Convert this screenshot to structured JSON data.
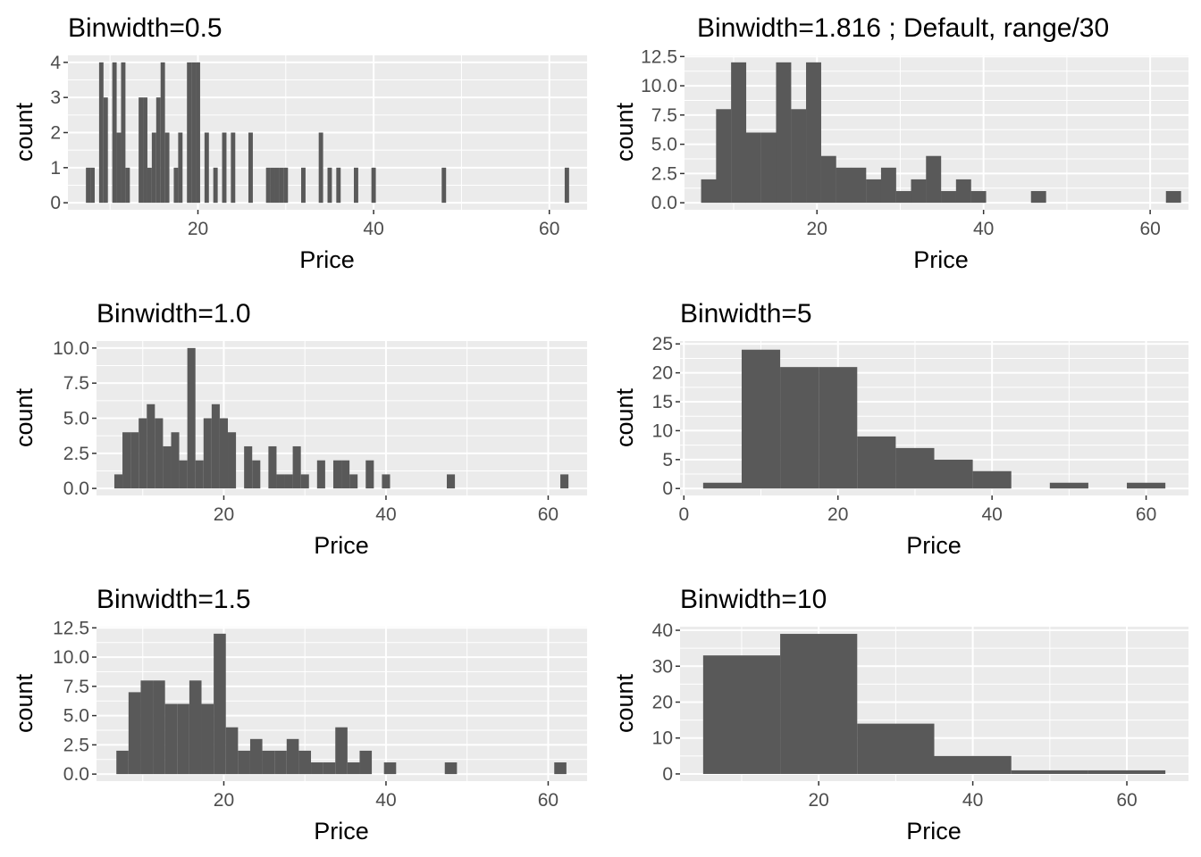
{
  "colors": {
    "panel_background": "#ebebeb",
    "grid": "#ffffff",
    "bar_fill": "#595959",
    "tick_text": "#4d4d4d",
    "tick_mark": "#333333"
  },
  "chart_data": [
    {
      "type": "bar",
      "title": "Binwidth=0.5",
      "xlabel": "Price",
      "ylabel": "count",
      "xlim": [
        5.2,
        64.3
      ],
      "ylim": [
        -0.2,
        4.2
      ],
      "xticks": [
        20,
        40,
        60
      ],
      "xtick_labels": [
        "20",
        "40",
        "60"
      ],
      "yticks": [
        0,
        1,
        2,
        3,
        4
      ],
      "ytick_labels": [
        "0",
        "1",
        "2",
        "3",
        "4"
      ],
      "grid": true,
      "binwidth": 0.5,
      "bins": [
        {
          "x": 7.5,
          "count": 1
        },
        {
          "x": 8.0,
          "count": 1
        },
        {
          "x": 9.0,
          "count": 4
        },
        {
          "x": 9.5,
          "count": 3
        },
        {
          "x": 10.5,
          "count": 4
        },
        {
          "x": 11.0,
          "count": 2
        },
        {
          "x": 11.5,
          "count": 4
        },
        {
          "x": 12.0,
          "count": 1
        },
        {
          "x": 13.5,
          "count": 3
        },
        {
          "x": 14.0,
          "count": 3
        },
        {
          "x": 14.5,
          "count": 1
        },
        {
          "x": 15.0,
          "count": 2
        },
        {
          "x": 15.5,
          "count": 3
        },
        {
          "x": 16.0,
          "count": 4
        },
        {
          "x": 16.5,
          "count": 2
        },
        {
          "x": 17.5,
          "count": 1
        },
        {
          "x": 18.0,
          "count": 2
        },
        {
          "x": 19.0,
          "count": 4
        },
        {
          "x": 19.5,
          "count": 4
        },
        {
          "x": 20.0,
          "count": 4
        },
        {
          "x": 21.0,
          "count": 2
        },
        {
          "x": 22.0,
          "count": 1
        },
        {
          "x": 23.0,
          "count": 2
        },
        {
          "x": 24.0,
          "count": 2
        },
        {
          "x": 26.0,
          "count": 2
        },
        {
          "x": 28.0,
          "count": 1
        },
        {
          "x": 28.5,
          "count": 1
        },
        {
          "x": 29.0,
          "count": 1
        },
        {
          "x": 29.5,
          "count": 1
        },
        {
          "x": 30.0,
          "count": 1
        },
        {
          "x": 32.0,
          "count": 1
        },
        {
          "x": 34.0,
          "count": 2
        },
        {
          "x": 35.0,
          "count": 1
        },
        {
          "x": 36.0,
          "count": 1
        },
        {
          "x": 38.0,
          "count": 1
        },
        {
          "x": 40.0,
          "count": 1
        },
        {
          "x": 48.0,
          "count": 1
        },
        {
          "x": 62.0,
          "count": 1
        }
      ]
    },
    {
      "type": "bar",
      "title": "Binwidth=1.816 ; Default, range/30",
      "xlabel": "Price",
      "ylabel": "count",
      "xlim": [
        4.1,
        64.6
      ],
      "ylim": [
        -0.6,
        12.6
      ],
      "xticks": [
        20,
        40,
        60
      ],
      "xtick_labels": [
        "20",
        "40",
        "60"
      ],
      "yticks": [
        0,
        2.5,
        5,
        7.5,
        10,
        12.5
      ],
      "ytick_labels": [
        "0.0",
        "2.5",
        "5.0",
        "7.5",
        "10.0",
        "12.5"
      ],
      "grid": true,
      "binwidth": 1.816,
      "bins": [
        {
          "x": 7.0,
          "count": 2
        },
        {
          "x": 8.8,
          "count": 8
        },
        {
          "x": 10.6,
          "count": 12
        },
        {
          "x": 12.4,
          "count": 6
        },
        {
          "x": 14.2,
          "count": 6
        },
        {
          "x": 16.0,
          "count": 12
        },
        {
          "x": 17.8,
          "count": 8
        },
        {
          "x": 19.6,
          "count": 12
        },
        {
          "x": 21.4,
          "count": 4
        },
        {
          "x": 23.2,
          "count": 3
        },
        {
          "x": 25.0,
          "count": 3
        },
        {
          "x": 26.8,
          "count": 2
        },
        {
          "x": 28.6,
          "count": 3
        },
        {
          "x": 30.4,
          "count": 1
        },
        {
          "x": 32.2,
          "count": 2
        },
        {
          "x": 34.0,
          "count": 4
        },
        {
          "x": 35.8,
          "count": 1
        },
        {
          "x": 37.6,
          "count": 2
        },
        {
          "x": 39.4,
          "count": 1
        },
        {
          "x": 41.2,
          "count": 0
        },
        {
          "x": 43.0,
          "count": 0
        },
        {
          "x": 44.8,
          "count": 0
        },
        {
          "x": 46.6,
          "count": 1
        },
        {
          "x": 48.4,
          "count": 0
        },
        {
          "x": 50.2,
          "count": 0
        },
        {
          "x": 52.0,
          "count": 0
        },
        {
          "x": 53.8,
          "count": 0
        },
        {
          "x": 55.6,
          "count": 0
        },
        {
          "x": 57.4,
          "count": 0
        },
        {
          "x": 59.2,
          "count": 0
        },
        {
          "x": 61.0,
          "count": 0
        },
        {
          "x": 62.8,
          "count": 1
        }
      ]
    },
    {
      "type": "bar",
      "title": "Binwidth=1.0",
      "xlabel": "Price",
      "ylabel": "count",
      "xlim": [
        4.3,
        64.8
      ],
      "ylim": [
        -0.5,
        10.5
      ],
      "xticks": [
        20,
        40,
        60
      ],
      "xtick_labels": [
        "20",
        "40",
        "60"
      ],
      "yticks": [
        0,
        2.5,
        5,
        7.5,
        10
      ],
      "ytick_labels": [
        "0.0",
        "2.5",
        "5.0",
        "7.5",
        "10.0"
      ],
      "grid": true,
      "binwidth": 1.0,
      "bins": [
        {
          "x": 7,
          "count": 1
        },
        {
          "x": 8,
          "count": 4
        },
        {
          "x": 9,
          "count": 4
        },
        {
          "x": 10,
          "count": 5
        },
        {
          "x": 11,
          "count": 6
        },
        {
          "x": 12,
          "count": 5
        },
        {
          "x": 13,
          "count": 3
        },
        {
          "x": 14,
          "count": 4
        },
        {
          "x": 15,
          "count": 2
        },
        {
          "x": 16,
          "count": 10
        },
        {
          "x": 17,
          "count": 2
        },
        {
          "x": 18,
          "count": 5
        },
        {
          "x": 19,
          "count": 6
        },
        {
          "x": 20,
          "count": 5
        },
        {
          "x": 21,
          "count": 4
        },
        {
          "x": 23,
          "count": 3
        },
        {
          "x": 24,
          "count": 2
        },
        {
          "x": 26,
          "count": 3
        },
        {
          "x": 27,
          "count": 1
        },
        {
          "x": 28,
          "count": 1
        },
        {
          "x": 29,
          "count": 3
        },
        {
          "x": 30,
          "count": 1
        },
        {
          "x": 32,
          "count": 2
        },
        {
          "x": 34,
          "count": 2
        },
        {
          "x": 35,
          "count": 2
        },
        {
          "x": 36,
          "count": 1
        },
        {
          "x": 38,
          "count": 2
        },
        {
          "x": 40,
          "count": 1
        },
        {
          "x": 48,
          "count": 1
        },
        {
          "x": 62,
          "count": 1
        }
      ]
    },
    {
      "type": "bar",
      "title": "Binwidth=5",
      "xlabel": "Price",
      "ylabel": "count",
      "xlim": [
        -0.5,
        65.5
      ],
      "ylim": [
        -1.2,
        25.5
      ],
      "xticks": [
        0,
        20,
        40,
        60
      ],
      "xtick_labels": [
        "0",
        "20",
        "40",
        "60"
      ],
      "yticks": [
        0,
        5,
        10,
        15,
        20,
        25
      ],
      "ytick_labels": [
        "0",
        "5",
        "10",
        "15",
        "20",
        "25"
      ],
      "grid": true,
      "binwidth": 5,
      "bins": [
        {
          "x": 5,
          "count": 1
        },
        {
          "x": 10,
          "count": 24
        },
        {
          "x": 15,
          "count": 21
        },
        {
          "x": 20,
          "count": 21
        },
        {
          "x": 25,
          "count": 9
        },
        {
          "x": 30,
          "count": 7
        },
        {
          "x": 35,
          "count": 5
        },
        {
          "x": 40,
          "count": 3
        },
        {
          "x": 45,
          "count": 0
        },
        {
          "x": 50,
          "count": 1
        },
        {
          "x": 55,
          "count": 0
        },
        {
          "x": 60,
          "count": 1
        }
      ]
    },
    {
      "type": "bar",
      "title": "Binwidth=1.5",
      "xlabel": "Price",
      "ylabel": "count",
      "xlim": [
        4.3,
        64.8
      ],
      "ylim": [
        -0.6,
        12.6
      ],
      "xticks": [
        20,
        40,
        60
      ],
      "xtick_labels": [
        "20",
        "40",
        "60"
      ],
      "yticks": [
        0,
        2.5,
        5,
        7.5,
        10,
        12.5
      ],
      "ytick_labels": [
        "0.0",
        "2.5",
        "5.0",
        "7.5",
        "10.0",
        "12.5"
      ],
      "grid": true,
      "binwidth": 1.5,
      "bins": [
        {
          "x": 7.5,
          "count": 2
        },
        {
          "x": 9.0,
          "count": 7
        },
        {
          "x": 10.5,
          "count": 8
        },
        {
          "x": 12.0,
          "count": 8
        },
        {
          "x": 13.5,
          "count": 6
        },
        {
          "x": 15.0,
          "count": 6
        },
        {
          "x": 16.5,
          "count": 8
        },
        {
          "x": 18.0,
          "count": 6
        },
        {
          "x": 19.5,
          "count": 12
        },
        {
          "x": 21.0,
          "count": 4
        },
        {
          "x": 22.5,
          "count": 2
        },
        {
          "x": 24.0,
          "count": 3
        },
        {
          "x": 25.5,
          "count": 2
        },
        {
          "x": 27.0,
          "count": 2
        },
        {
          "x": 28.5,
          "count": 3
        },
        {
          "x": 30.0,
          "count": 2
        },
        {
          "x": 31.5,
          "count": 1
        },
        {
          "x": 33.0,
          "count": 1
        },
        {
          "x": 34.5,
          "count": 4
        },
        {
          "x": 36.0,
          "count": 1
        },
        {
          "x": 37.5,
          "count": 2
        },
        {
          "x": 39.0,
          "count": 0
        },
        {
          "x": 40.5,
          "count": 1
        },
        {
          "x": 42.0,
          "count": 0
        },
        {
          "x": 43.5,
          "count": 0
        },
        {
          "x": 45.0,
          "count": 0
        },
        {
          "x": 46.5,
          "count": 0
        },
        {
          "x": 48.0,
          "count": 1
        },
        {
          "x": 49.5,
          "count": 0
        },
        {
          "x": 51.0,
          "count": 0
        },
        {
          "x": 52.5,
          "count": 0
        },
        {
          "x": 54.0,
          "count": 0
        },
        {
          "x": 55.5,
          "count": 0
        },
        {
          "x": 57.0,
          "count": 0
        },
        {
          "x": 58.5,
          "count": 0
        },
        {
          "x": 60.0,
          "count": 0
        },
        {
          "x": 61.5,
          "count": 1
        }
      ]
    },
    {
      "type": "bar",
      "title": "Binwidth=10",
      "xlabel": "Price",
      "ylabel": "count",
      "xlim": [
        2.0,
        68.0
      ],
      "ylim": [
        -2.0,
        41.0
      ],
      "xticks": [
        20,
        40,
        60
      ],
      "xtick_labels": [
        "20",
        "40",
        "60"
      ],
      "yticks": [
        0,
        10,
        20,
        30,
        40
      ],
      "ytick_labels": [
        "0",
        "10",
        "20",
        "30",
        "40"
      ],
      "grid": true,
      "binwidth": 10,
      "bins": [
        {
          "x": 10,
          "count": 33
        },
        {
          "x": 20,
          "count": 39
        },
        {
          "x": 30,
          "count": 14
        },
        {
          "x": 40,
          "count": 5
        },
        {
          "x": 50,
          "count": 1
        },
        {
          "x": 60,
          "count": 1
        }
      ]
    }
  ]
}
